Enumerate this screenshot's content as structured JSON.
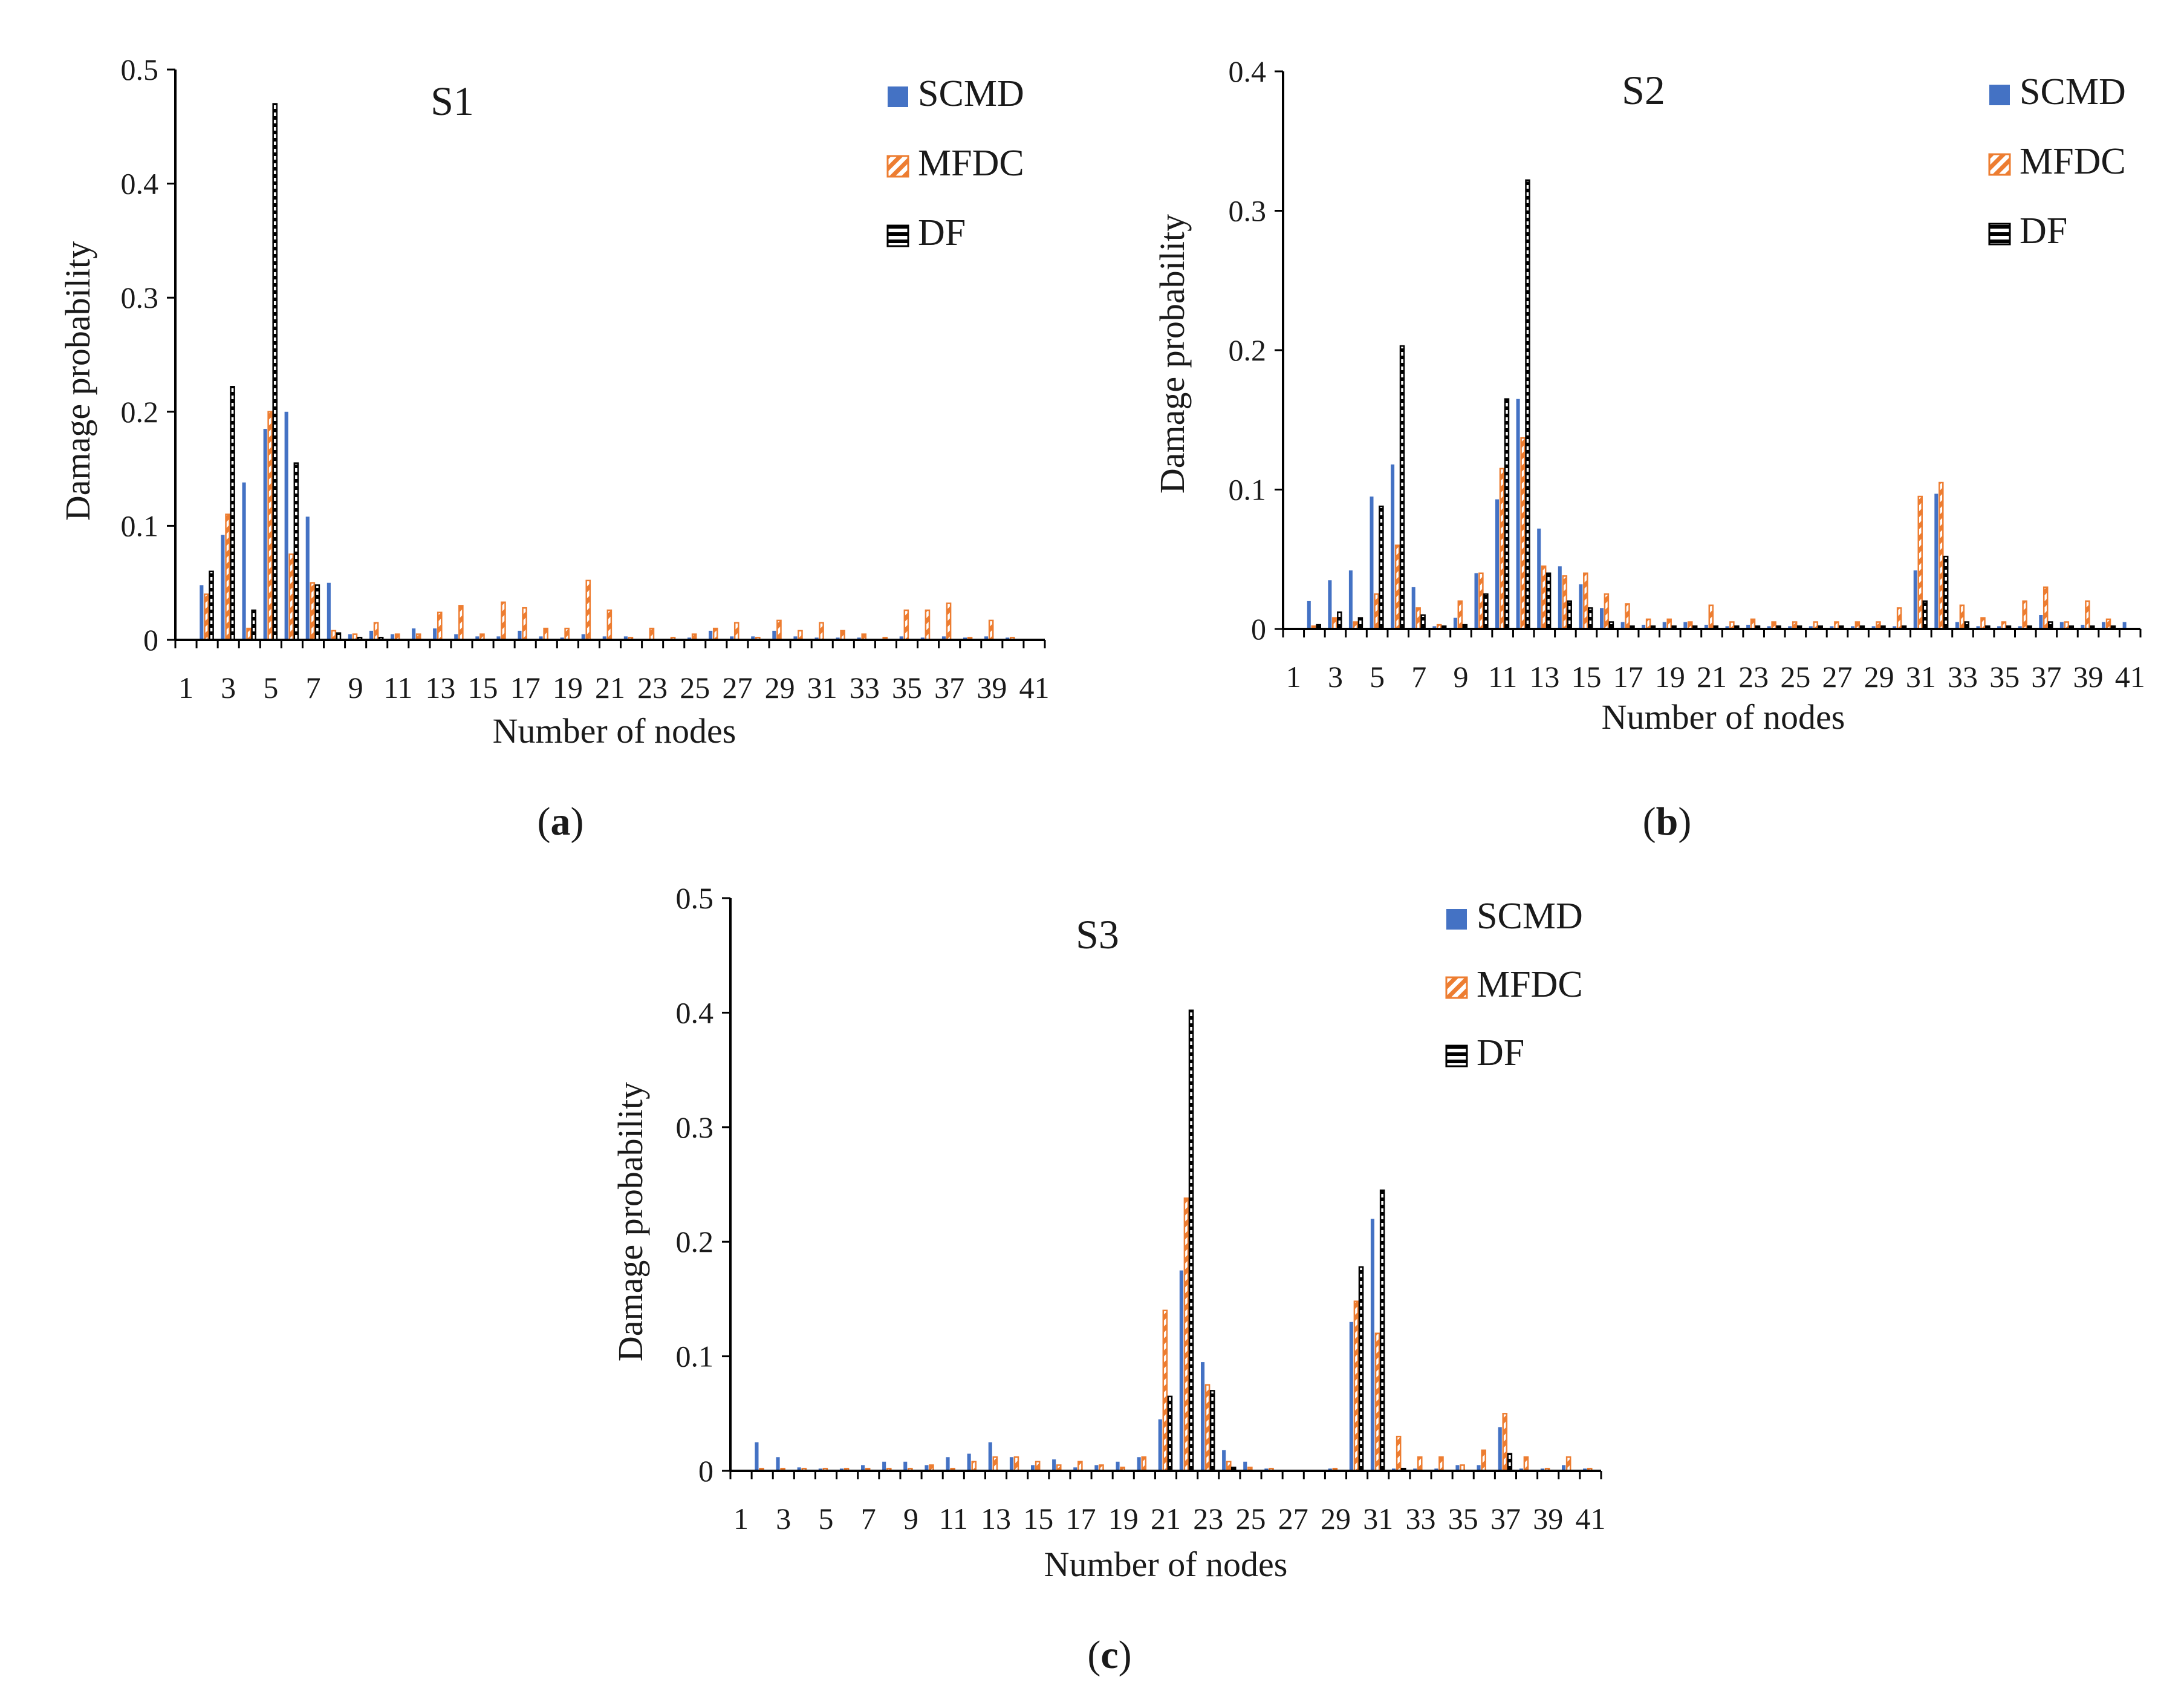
{
  "legend_labels": [
    "SCMD",
    "MFDC",
    "DF"
  ],
  "colors": {
    "SCMD": "#4472C4",
    "MFDC": "#ED7D31",
    "DF": "#000000"
  },
  "chart_data": [
    {
      "type": "bar",
      "panel": "(a)",
      "caption_letter": "a",
      "title": "S1",
      "xlabel": "Number of nodes",
      "ylabel": "Damage probability",
      "ylim": [
        0,
        0.5
      ],
      "yticks": [
        "0",
        "0.1",
        "0.2",
        "0.3",
        "0.4",
        "0.5"
      ],
      "xtick_labels": [
        "1",
        "3",
        "5",
        "7",
        "9",
        "11",
        "13",
        "15",
        "17",
        "19",
        "21",
        "23",
        "25",
        "27",
        "29",
        "31",
        "33",
        "35",
        "37",
        "39",
        "41"
      ],
      "categories": [
        1,
        2,
        3,
        4,
        5,
        6,
        7,
        8,
        9,
        10,
        11,
        12,
        13,
        14,
        15,
        16,
        17,
        18,
        19,
        20,
        21,
        22,
        23,
        24,
        25,
        26,
        27,
        28,
        29,
        30,
        31,
        32,
        33,
        34,
        35,
        36,
        37,
        38,
        39,
        40,
        41
      ],
      "legend_position": "top-right",
      "series": [
        {
          "name": "SCMD",
          "values": [
            0,
            0.048,
            0.092,
            0.138,
            0.185,
            0.2,
            0.108,
            0.05,
            0.005,
            0.008,
            0.005,
            0.01,
            0.01,
            0.005,
            0.003,
            0.003,
            0.008,
            0.003,
            0.002,
            0.005,
            0.003,
            0.003,
            0,
            0,
            0.002,
            0.008,
            0.003,
            0.003,
            0.008,
            0.003,
            0.002,
            0.002,
            0.002,
            0,
            0.003,
            0.002,
            0.003,
            0.002,
            0.003,
            0.002,
            0
          ]
        },
        {
          "name": "MFDC",
          "values": [
            0,
            0.04,
            0.11,
            0.01,
            0.2,
            0.075,
            0.05,
            0.008,
            0.005,
            0.015,
            0.005,
            0.005,
            0.024,
            0.03,
            0.005,
            0.033,
            0.028,
            0.01,
            0.01,
            0.052,
            0.026,
            0.002,
            0.01,
            0.002,
            0.005,
            0.01,
            0.015,
            0.002,
            0.017,
            0.008,
            0.015,
            0.008,
            0.005,
            0.002,
            0.026,
            0.026,
            0.032,
            0.002,
            0.017,
            0.002,
            0
          ]
        },
        {
          "name": "DF",
          "values": [
            0,
            0.06,
            0.222,
            0.026,
            0.47,
            0.155,
            0.048,
            0.006,
            0.002,
            0.002,
            0,
            0,
            0,
            0,
            0,
            0,
            0,
            0,
            0,
            0,
            0,
            0,
            0,
            0,
            0,
            0,
            0,
            0,
            0,
            0,
            0,
            0,
            0,
            0,
            0,
            0,
            0,
            0,
            0,
            0,
            0
          ]
        }
      ]
    },
    {
      "type": "bar",
      "panel": "(b)",
      "caption_letter": "b",
      "title": "S2",
      "xlabel": "Number of nodes",
      "ylabel": "Damage probability",
      "ylim": [
        0,
        0.4
      ],
      "yticks": [
        "0",
        "0.1",
        "0.2",
        "0.3",
        "0.4"
      ],
      "xtick_labels": [
        "1",
        "3",
        "5",
        "7",
        "9",
        "11",
        "13",
        "15",
        "17",
        "19",
        "21",
        "23",
        "25",
        "27",
        "29",
        "31",
        "33",
        "35",
        "37",
        "39",
        "41"
      ],
      "categories": [
        1,
        2,
        3,
        4,
        5,
        6,
        7,
        8,
        9,
        10,
        11,
        12,
        13,
        14,
        15,
        16,
        17,
        18,
        19,
        20,
        21,
        22,
        23,
        24,
        25,
        26,
        27,
        28,
        29,
        30,
        31,
        32,
        33,
        34,
        35,
        36,
        37,
        38,
        39,
        40,
        41
      ],
      "legend_position": "top-right",
      "series": [
        {
          "name": "SCMD",
          "values": [
            0,
            0.02,
            0.035,
            0.042,
            0.095,
            0.118,
            0.03,
            0.002,
            0.008,
            0.04,
            0.093,
            0.165,
            0.072,
            0.045,
            0.032,
            0.015,
            0.005,
            0.003,
            0.005,
            0.005,
            0.003,
            0.002,
            0.003,
            0.002,
            0.002,
            0.002,
            0.002,
            0.002,
            0.002,
            0.002,
            0.042,
            0.097,
            0.005,
            0.002,
            0.002,
            0.002,
            0.01,
            0.005,
            0.003,
            0.005,
            0.005
          ]
        },
        {
          "name": "MFDC",
          "values": [
            0,
            0.002,
            0.008,
            0.005,
            0.025,
            0.06,
            0.015,
            0.003,
            0.02,
            0.04,
            0.115,
            0.137,
            0.045,
            0.038,
            0.04,
            0.025,
            0.018,
            0.007,
            0.007,
            0.005,
            0.017,
            0.005,
            0.007,
            0.005,
            0.005,
            0.005,
            0.005,
            0.005,
            0.005,
            0.015,
            0.095,
            0.105,
            0.017,
            0.008,
            0.005,
            0.02,
            0.03,
            0.005,
            0.02,
            0.007,
            0
          ]
        },
        {
          "name": "DF",
          "values": [
            0,
            0.003,
            0.012,
            0.008,
            0.088,
            0.203,
            0.01,
            0.002,
            0.003,
            0.025,
            0.165,
            0.322,
            0.04,
            0.02,
            0.015,
            0.005,
            0.002,
            0.002,
            0.002,
            0.002,
            0.002,
            0.002,
            0.002,
            0.002,
            0.002,
            0.002,
            0.002,
            0.002,
            0.002,
            0.002,
            0.02,
            0.052,
            0.005,
            0.002,
            0.002,
            0.002,
            0.005,
            0.002,
            0.002,
            0.002,
            0
          ]
        }
      ]
    },
    {
      "type": "bar",
      "panel": "(c)",
      "caption_letter": "c",
      "title": "S3",
      "xlabel": "Number of nodes",
      "ylabel": "Damage probability",
      "ylim": [
        0,
        0.5
      ],
      "yticks": [
        "0",
        "0.1",
        "0.2",
        "0.3",
        "0.4",
        "0.5"
      ],
      "xtick_labels": [
        "1",
        "3",
        "5",
        "7",
        "9",
        "11",
        "13",
        "15",
        "17",
        "19",
        "21",
        "23",
        "25",
        "27",
        "29",
        "31",
        "33",
        "35",
        "37",
        "39",
        "41"
      ],
      "categories": [
        1,
        2,
        3,
        4,
        5,
        6,
        7,
        8,
        9,
        10,
        11,
        12,
        13,
        14,
        15,
        16,
        17,
        18,
        19,
        20,
        21,
        22,
        23,
        24,
        25,
        26,
        27,
        28,
        29,
        30,
        31,
        32,
        33,
        34,
        35,
        36,
        37,
        38,
        39,
        40,
        41
      ],
      "legend_position": "top-right",
      "series": [
        {
          "name": "SCMD",
          "values": [
            0,
            0.025,
            0.012,
            0.003,
            0.002,
            0.002,
            0.005,
            0.008,
            0.008,
            0.005,
            0.012,
            0.015,
            0.025,
            0.012,
            0.005,
            0.01,
            0.003,
            0.005,
            0.008,
            0.012,
            0.045,
            0.175,
            0.095,
            0.018,
            0.008,
            0.002,
            0,
            0,
            0.002,
            0.13,
            0.22,
            0.002,
            0.002,
            0.002,
            0.005,
            0.005,
            0.038,
            0.002,
            0.002,
            0.005,
            0.002
          ]
        },
        {
          "name": "MFDC",
          "values": [
            0,
            0.002,
            0.002,
            0.002,
            0.002,
            0.002,
            0.002,
            0.002,
            0.002,
            0.005,
            0.002,
            0.008,
            0.012,
            0.012,
            0.008,
            0.005,
            0.008,
            0.005,
            0.003,
            0.012,
            0.14,
            0.238,
            0.075,
            0.008,
            0.003,
            0.002,
            0,
            0,
            0.002,
            0.148,
            0.12,
            0.03,
            0.012,
            0.012,
            0.005,
            0.018,
            0.05,
            0.012,
            0.002,
            0.012,
            0.002
          ]
        },
        {
          "name": "DF",
          "values": [
            0,
            0,
            0,
            0,
            0,
            0,
            0,
            0,
            0,
            0,
            0,
            0,
            0,
            0,
            0,
            0,
            0,
            0,
            0,
            0,
            0.065,
            0.402,
            0.07,
            0.003,
            0,
            0,
            0,
            0,
            0,
            0.178,
            0.245,
            0.002,
            0,
            0,
            0,
            0,
            0.015,
            0,
            0,
            0,
            0
          ]
        }
      ]
    }
  ]
}
